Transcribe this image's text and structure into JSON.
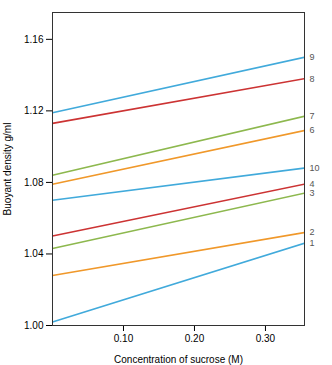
{
  "chart_data": {
    "type": "line",
    "xlabel": "Concentration of sucrose (M)",
    "ylabel": "Buoyant density g/ml",
    "x": [
      0.0,
      0.355
    ],
    "series": [
      {
        "name": "9",
        "color": "#41aadb",
        "values": [
          1.119,
          1.15
        ]
      },
      {
        "name": "8",
        "color": "#cc3333",
        "values": [
          1.113,
          1.138
        ]
      },
      {
        "name": "7",
        "color": "#8db84e",
        "values": [
          1.084,
          1.117
        ]
      },
      {
        "name": "6",
        "color": "#f0982a",
        "values": [
          1.079,
          1.109
        ]
      },
      {
        "name": "10",
        "color": "#41aadb",
        "values": [
          1.07,
          1.088
        ]
      },
      {
        "name": "4",
        "color": "#cc3333",
        "values": [
          1.05,
          1.079
        ]
      },
      {
        "name": "3",
        "color": "#8db84e",
        "values": [
          1.043,
          1.074
        ]
      },
      {
        "name": "2",
        "color": "#f0982a",
        "values": [
          1.028,
          1.052
        ]
      },
      {
        "name": "1",
        "color": "#41aadb",
        "values": [
          1.002,
          1.046
        ]
      }
    ],
    "xlim": [
      0.0,
      0.355
    ],
    "ylim": [
      1.0,
      1.175
    ],
    "xticks": [
      {
        "value": 0.1,
        "label": "0.10"
      },
      {
        "value": 0.2,
        "label": "0.20"
      },
      {
        "value": 0.3,
        "label": "0.30"
      }
    ],
    "yticks": [
      {
        "value": 1.0,
        "label": "1.00"
      },
      {
        "value": 1.04,
        "label": "1.04"
      },
      {
        "value": 1.08,
        "label": "1.08"
      },
      {
        "value": 1.12,
        "label": "1.12"
      },
      {
        "value": 1.16,
        "label": "1.16"
      }
    ]
  }
}
